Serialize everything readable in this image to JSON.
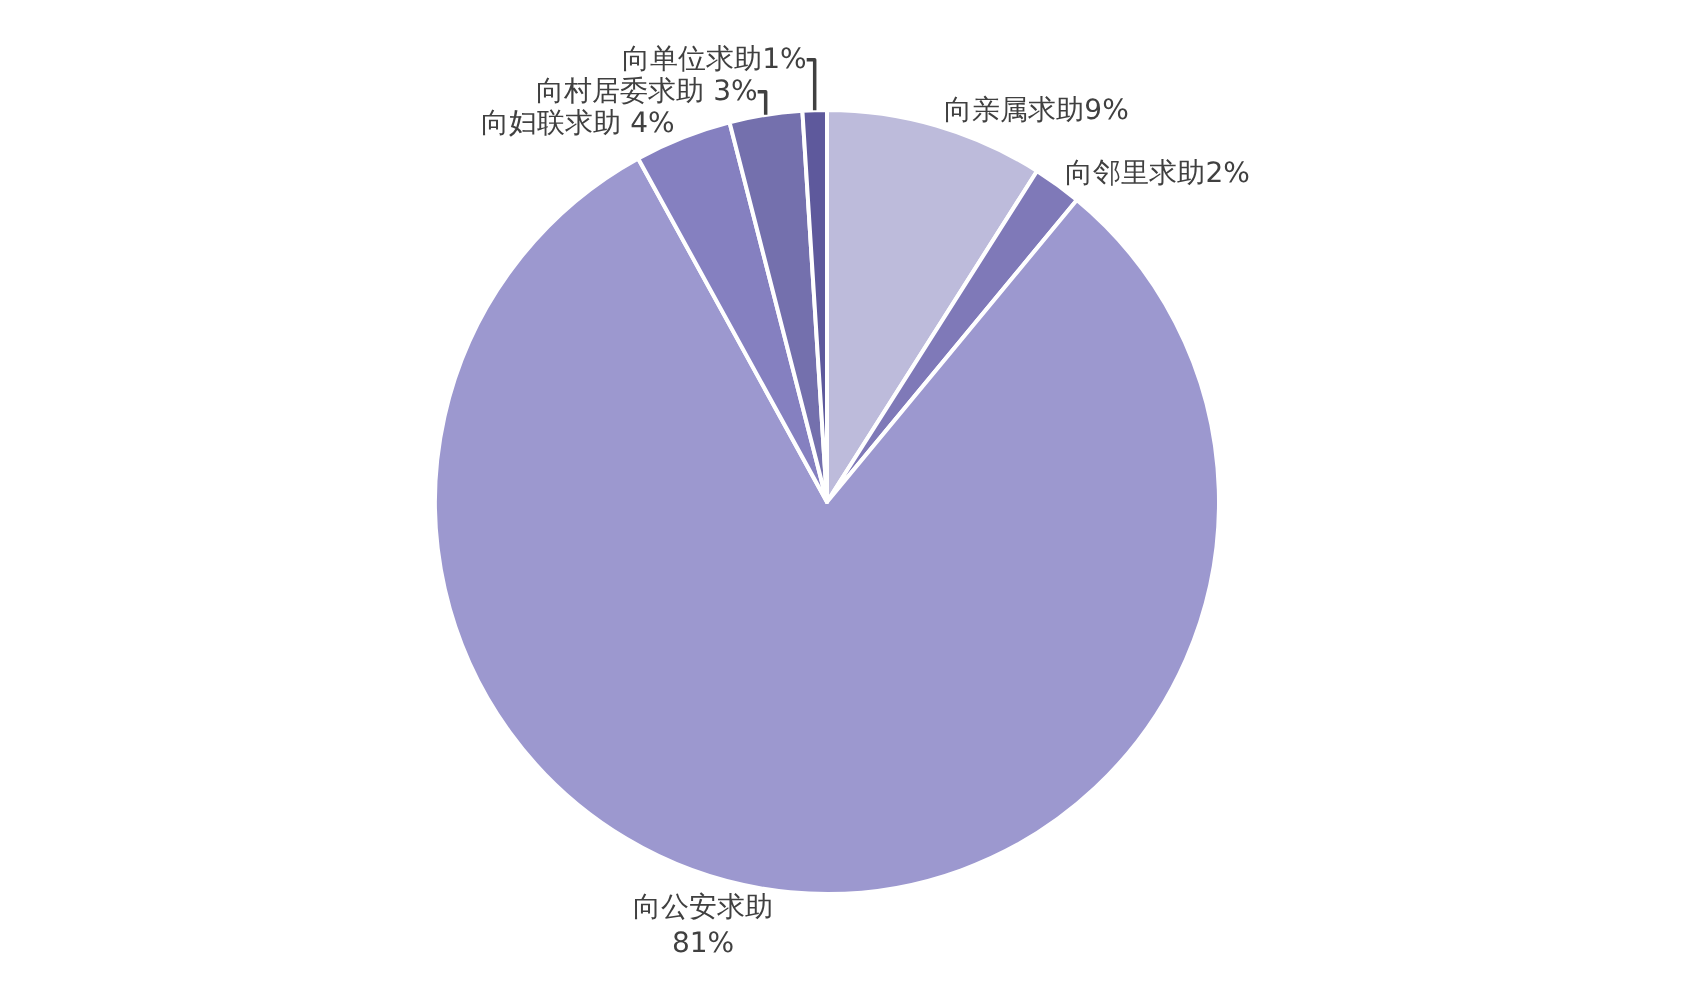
{
  "chart_data": {
    "type": "pie",
    "categories": [
      "向亲属求助",
      "向邻里求助",
      "向公安求助",
      "向妇联求助",
      "向村居委求助",
      "向单位求助"
    ],
    "values": [
      9,
      2,
      81,
      4,
      3,
      1
    ],
    "colors": [
      "#bdbbdb",
      "#7f79b8",
      "#9c98cf",
      "#8580c0",
      "#7470ad",
      "#5e599c"
    ],
    "value_labels": [
      "9%",
      "2%",
      "\n81%",
      " 4%",
      " 3%",
      "1%"
    ],
    "legend": false
  }
}
